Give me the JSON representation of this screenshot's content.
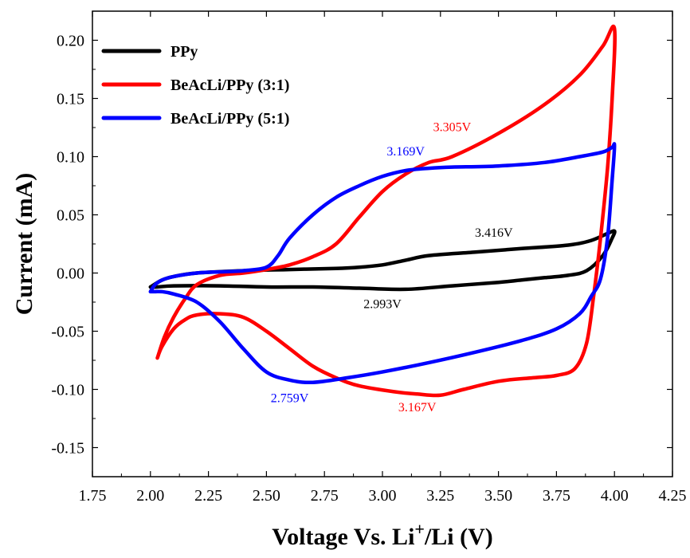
{
  "chart_data": {
    "type": "line",
    "title": "",
    "xlabel_main": "Voltage Vs. Li",
    "xlabel_sup": "+",
    "xlabel_tail": "/Li (V)",
    "ylabel": "Current (mA)",
    "xlim": [
      1.75,
      4.25
    ],
    "ylim": [
      -0.175,
      0.225
    ],
    "xticks": [
      1.75,
      2.0,
      2.25,
      2.5,
      2.75,
      3.0,
      3.25,
      3.5,
      3.75,
      4.0,
      4.25
    ],
    "xtick_labels": [
      "1.75",
      "2.00",
      "2.25",
      "2.50",
      "2.75",
      "3.00",
      "3.25",
      "3.50",
      "3.75",
      "4.00",
      "4.25"
    ],
    "yticks": [
      -0.15,
      -0.1,
      -0.05,
      0.0,
      0.05,
      0.1,
      0.15,
      0.2
    ],
    "ytick_labels": [
      "-0.15",
      "-0.10",
      "-0.05",
      "0.00",
      "0.05",
      "0.10",
      "0.15",
      "0.20"
    ],
    "grid": false,
    "legend_position": "top-left",
    "series": [
      {
        "name": "PPy",
        "color": "#000000",
        "x": [
          2.0,
          2.05,
          2.1,
          2.2,
          2.4,
          2.6,
          2.8,
          2.9,
          3.0,
          3.1,
          3.2,
          3.4,
          3.6,
          3.8,
          3.9,
          3.97,
          4.0,
          3.99,
          3.95,
          3.88,
          3.8,
          3.7,
          3.6,
          3.5,
          3.3,
          3.1,
          2.9,
          2.7,
          2.5,
          2.3,
          2.1,
          2.03,
          2.0
        ],
        "y": [
          -0.012,
          -0.006,
          -0.003,
          0.0,
          0.002,
          0.003,
          0.004,
          0.005,
          0.007,
          0.011,
          0.015,
          0.018,
          0.021,
          0.024,
          0.028,
          0.034,
          0.036,
          0.03,
          0.015,
          0.002,
          -0.002,
          -0.004,
          -0.006,
          -0.008,
          -0.011,
          -0.014,
          -0.013,
          -0.012,
          -0.012,
          -0.011,
          -0.011,
          -0.012,
          -0.012
        ]
      },
      {
        "name": "BeAcLi/PPy (3:1)",
        "color": "#ff0000",
        "x": [
          2.03,
          2.06,
          2.1,
          2.15,
          2.2,
          2.3,
          2.4,
          2.5,
          2.6,
          2.7,
          2.8,
          2.9,
          3.0,
          3.1,
          3.2,
          3.3,
          3.5,
          3.7,
          3.85,
          3.95,
          4.0,
          3.99,
          3.97,
          3.94,
          3.91,
          3.88,
          3.83,
          3.75,
          3.65,
          3.5,
          3.35,
          3.25,
          3.15,
          3.05,
          2.9,
          2.8,
          2.7,
          2.6,
          2.5,
          2.4,
          2.3,
          2.2,
          2.15,
          2.1,
          2.05,
          2.03
        ],
        "y": [
          -0.073,
          -0.055,
          -0.038,
          -0.022,
          -0.01,
          -0.002,
          0.0,
          0.003,
          0.007,
          0.014,
          0.025,
          0.048,
          0.07,
          0.085,
          0.095,
          0.1,
          0.12,
          0.145,
          0.17,
          0.195,
          0.21,
          0.15,
          0.09,
          0.03,
          -0.02,
          -0.06,
          -0.082,
          -0.088,
          -0.09,
          -0.093,
          -0.1,
          -0.105,
          -0.104,
          -0.102,
          -0.097,
          -0.09,
          -0.08,
          -0.065,
          -0.05,
          -0.038,
          -0.035,
          -0.036,
          -0.04,
          -0.048,
          -0.063,
          -0.073
        ]
      },
      {
        "name": "BeAcLi/PPy (5:1)",
        "color": "#0000ff",
        "x": [
          2.0,
          2.02,
          2.05,
          2.1,
          2.2,
          2.3,
          2.4,
          2.5,
          2.55,
          2.6,
          2.7,
          2.8,
          2.9,
          3.0,
          3.1,
          3.2,
          3.3,
          3.5,
          3.7,
          3.85,
          3.95,
          3.99,
          4.0,
          3.99,
          3.97,
          3.94,
          3.9,
          3.85,
          3.75,
          3.6,
          3.4,
          3.2,
          3.0,
          2.85,
          2.7,
          2.6,
          2.5,
          2.4,
          2.3,
          2.2,
          2.1,
          2.05,
          2.02,
          2.0
        ],
        "y": [
          -0.016,
          -0.01,
          -0.006,
          -0.003,
          0.0,
          0.001,
          0.002,
          0.005,
          0.015,
          0.03,
          0.05,
          0.065,
          0.075,
          0.083,
          0.088,
          0.09,
          0.091,
          0.092,
          0.095,
          0.1,
          0.104,
          0.108,
          0.109,
          0.08,
          0.03,
          -0.005,
          -0.02,
          -0.035,
          -0.048,
          -0.058,
          -0.068,
          -0.077,
          -0.085,
          -0.09,
          -0.094,
          -0.092,
          -0.085,
          -0.065,
          -0.042,
          -0.025,
          -0.018,
          -0.016,
          -0.016,
          -0.016
        ]
      }
    ],
    "annotations": [
      {
        "text": "3.305V",
        "x": 3.3,
        "y": 0.122,
        "color": "#ff0000"
      },
      {
        "text": "3.169V",
        "x": 3.1,
        "y": 0.101,
        "color": "#0000ff"
      },
      {
        "text": "3.416V",
        "x": 3.48,
        "y": 0.031,
        "color": "#000000"
      },
      {
        "text": "2.993V",
        "x": 3.0,
        "y": -0.03,
        "color": "#000000"
      },
      {
        "text": "2.759V",
        "x": 2.6,
        "y": -0.111,
        "color": "#0000ff"
      },
      {
        "text": "3.167V",
        "x": 3.15,
        "y": -0.119,
        "color": "#ff0000"
      }
    ]
  }
}
